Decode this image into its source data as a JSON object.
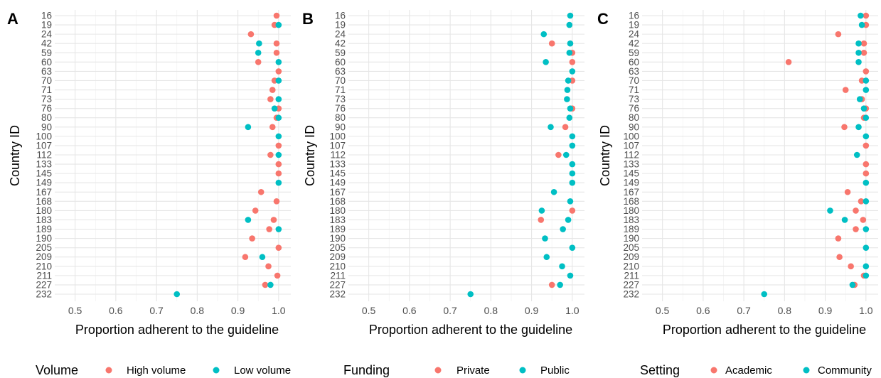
{
  "colors": {
    "group1": "#F8766D",
    "group2": "#00BFC4"
  },
  "chart_data": [
    {
      "type": "scatter",
      "panel": "A",
      "xlabel": "Proportion adherent to the guideline",
      "ylabel": "Country ID",
      "xlim": [
        0.45,
        1.03
      ],
      "xticks": [
        0.5,
        0.6,
        0.7,
        0.8,
        0.9,
        1.0
      ],
      "xtick_labels": [
        "0.5",
        "0.6",
        "0.7",
        "0.8",
        "0.9",
        "1.0"
      ],
      "categories": [
        "16",
        "19",
        "24",
        "42",
        "59",
        "60",
        "63",
        "70",
        "71",
        "73",
        "76",
        "80",
        "90",
        "100",
        "107",
        "112",
        "133",
        "145",
        "149",
        "167",
        "168",
        "180",
        "183",
        "189",
        "190",
        "205",
        "209",
        "210",
        "211",
        "227",
        "232"
      ],
      "legend": {
        "title": "Volume",
        "position": "bottom"
      },
      "series": [
        {
          "name": "High volume",
          "color": "#F8766D",
          "points": [
            [
              "16",
              0.995
            ],
            [
              "19",
              0.99
            ],
            [
              "24",
              0.932
            ],
            [
              "42",
              0.995
            ],
            [
              "59",
              0.995
            ],
            [
              "60",
              0.95
            ],
            [
              "63",
              1.0
            ],
            [
              "70",
              0.99
            ],
            [
              "71",
              0.985
            ],
            [
              "73",
              0.98
            ],
            [
              "76",
              1.0
            ],
            [
              "80",
              0.995
            ],
            [
              "90",
              0.985
            ],
            [
              "107",
              1.0
            ],
            [
              "112",
              0.98
            ],
            [
              "133",
              1.0
            ],
            [
              "145",
              1.0
            ],
            [
              "167",
              0.957
            ],
            [
              "168",
              0.995
            ],
            [
              "180",
              0.943
            ],
            [
              "183",
              0.988
            ],
            [
              "189",
              0.977
            ],
            [
              "190",
              0.935
            ],
            [
              "205",
              1.0
            ],
            [
              "209",
              0.918
            ],
            [
              "210",
              0.975
            ],
            [
              "211",
              0.997
            ],
            [
              "227",
              0.967
            ]
          ]
        },
        {
          "name": "Low volume",
          "color": "#00BFC4",
          "points": [
            [
              "19",
              1.0
            ],
            [
              "42",
              0.952
            ],
            [
              "59",
              0.95
            ],
            [
              "60",
              1.0
            ],
            [
              "70",
              1.0
            ],
            [
              "73",
              1.0
            ],
            [
              "76",
              0.99
            ],
            [
              "80",
              1.0
            ],
            [
              "90",
              0.925
            ],
            [
              "100",
              1.0
            ],
            [
              "112",
              1.0
            ],
            [
              "149",
              1.0
            ],
            [
              "183",
              0.925
            ],
            [
              "189",
              1.0
            ],
            [
              "209",
              0.96
            ],
            [
              "227",
              0.98
            ],
            [
              "232",
              0.75
            ]
          ]
        }
      ]
    },
    {
      "type": "scatter",
      "panel": "B",
      "xlabel": "Proportion adherent to the guideline",
      "ylabel": "Country ID",
      "xlim": [
        0.45,
        1.03
      ],
      "xticks": [
        0.5,
        0.6,
        0.7,
        0.8,
        0.9,
        1.0
      ],
      "xtick_labels": [
        "0.5",
        "0.6",
        "0.7",
        "0.8",
        "0.9",
        "1.0"
      ],
      "categories": [
        "16",
        "19",
        "24",
        "42",
        "59",
        "60",
        "63",
        "70",
        "71",
        "73",
        "76",
        "80",
        "90",
        "100",
        "107",
        "112",
        "133",
        "145",
        "149",
        "167",
        "168",
        "180",
        "183",
        "189",
        "190",
        "205",
        "209",
        "210",
        "211",
        "227",
        "232"
      ],
      "legend": {
        "title": "Funding",
        "position": "bottom"
      },
      "series": [
        {
          "name": "Private",
          "color": "#F8766D",
          "points": [
            [
              "42",
              0.95
            ],
            [
              "59",
              1.0
            ],
            [
              "60",
              1.0
            ],
            [
              "70",
              1.0
            ],
            [
              "76",
              1.0
            ],
            [
              "90",
              0.983
            ],
            [
              "112",
              0.966
            ],
            [
              "180",
              1.0
            ],
            [
              "183",
              0.923
            ],
            [
              "227",
              0.95
            ]
          ]
        },
        {
          "name": "Public",
          "color": "#00BFC4",
          "points": [
            [
              "16",
              0.995
            ],
            [
              "19",
              0.993
            ],
            [
              "24",
              0.93
            ],
            [
              "42",
              0.995
            ],
            [
              "59",
              0.993
            ],
            [
              "60",
              0.935
            ],
            [
              "63",
              1.0
            ],
            [
              "70",
              0.99
            ],
            [
              "71",
              0.988
            ],
            [
              "73",
              0.987
            ],
            [
              "76",
              0.995
            ],
            [
              "80",
              0.993
            ],
            [
              "90",
              0.947
            ],
            [
              "100",
              1.0
            ],
            [
              "107",
              1.0
            ],
            [
              "112",
              0.985
            ],
            [
              "133",
              1.0
            ],
            [
              "145",
              1.0
            ],
            [
              "149",
              1.0
            ],
            [
              "167",
              0.955
            ],
            [
              "168",
              0.995
            ],
            [
              "180",
              0.925
            ],
            [
              "183",
              0.99
            ],
            [
              "189",
              0.977
            ],
            [
              "190",
              0.933
            ],
            [
              "205",
              1.0
            ],
            [
              "209",
              0.937
            ],
            [
              "210",
              0.975
            ],
            [
              "211",
              0.995
            ],
            [
              "227",
              0.97
            ],
            [
              "232",
              0.75
            ]
          ]
        }
      ]
    },
    {
      "type": "scatter",
      "panel": "C",
      "xlabel": "Proportion adherent to the guideline",
      "ylabel": "Country ID",
      "xlim": [
        0.45,
        1.03
      ],
      "xticks": [
        0.5,
        0.6,
        0.7,
        0.8,
        0.9,
        1.0
      ],
      "xtick_labels": [
        "0.5",
        "0.6",
        "0.7",
        "0.8",
        "0.9",
        "1.0"
      ],
      "categories": [
        "16",
        "19",
        "24",
        "42",
        "59",
        "60",
        "63",
        "70",
        "71",
        "73",
        "76",
        "80",
        "90",
        "100",
        "107",
        "112",
        "133",
        "145",
        "149",
        "167",
        "168",
        "180",
        "183",
        "189",
        "190",
        "205",
        "209",
        "210",
        "211",
        "227",
        "232"
      ],
      "legend": {
        "title": "Setting",
        "position": "bottom"
      },
      "series": [
        {
          "name": "Academic",
          "color": "#F8766D",
          "points": [
            [
              "16",
              1.0
            ],
            [
              "19",
              1.0
            ],
            [
              "24",
              0.932
            ],
            [
              "42",
              0.995
            ],
            [
              "59",
              0.995
            ],
            [
              "60",
              0.81
            ],
            [
              "63",
              1.0
            ],
            [
              "70",
              0.99
            ],
            [
              "71",
              0.95
            ],
            [
              "73",
              0.99
            ],
            [
              "76",
              1.0
            ],
            [
              "80",
              0.995
            ],
            [
              "90",
              0.947
            ],
            [
              "107",
              1.0
            ],
            [
              "133",
              1.0
            ],
            [
              "145",
              1.0
            ],
            [
              "167",
              0.955
            ],
            [
              "168",
              0.988
            ],
            [
              "180",
              0.975
            ],
            [
              "183",
              0.993
            ],
            [
              "189",
              0.975
            ],
            [
              "190",
              0.932
            ],
            [
              "209",
              0.935
            ],
            [
              "210",
              0.963
            ],
            [
              "211",
              0.995
            ],
            [
              "227",
              0.972
            ]
          ]
        },
        {
          "name": "Community",
          "color": "#00BFC4",
          "points": [
            [
              "16",
              0.987
            ],
            [
              "19",
              0.99
            ],
            [
              "42",
              0.982
            ],
            [
              "59",
              0.982
            ],
            [
              "60",
              0.982
            ],
            [
              "70",
              1.0
            ],
            [
              "71",
              1.0
            ],
            [
              "73",
              0.985
            ],
            [
              "76",
              0.995
            ],
            [
              "80",
              1.0
            ],
            [
              "90",
              0.982
            ],
            [
              "100",
              1.0
            ],
            [
              "112",
              0.978
            ],
            [
              "149",
              1.0
            ],
            [
              "168",
              1.0
            ],
            [
              "180",
              0.912
            ],
            [
              "183",
              0.948
            ],
            [
              "189",
              1.0
            ],
            [
              "205",
              1.0
            ],
            [
              "210",
              1.0
            ],
            [
              "211",
              1.0
            ],
            [
              "227",
              0.967
            ],
            [
              "232",
              0.75
            ]
          ]
        }
      ]
    }
  ]
}
